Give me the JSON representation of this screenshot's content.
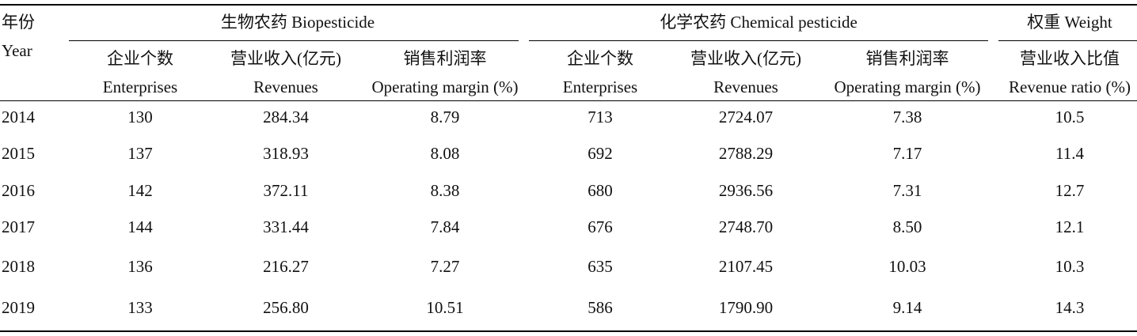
{
  "year_header": {
    "zh": "年份",
    "en": "Year"
  },
  "groups": {
    "bio": "生物农药 Biopesticide",
    "chem": "化学农药 Chemical pesticide",
    "weight": "权重 Weight"
  },
  "subheaders": [
    {
      "zh": "企业个数",
      "en": "Enterprises"
    },
    {
      "zh": "营业收入(亿元)",
      "en": "Revenues"
    },
    {
      "zh": "销售利润率",
      "en": "Operating margin (%)"
    },
    {
      "zh": "企业个数",
      "en": "Enterprises"
    },
    {
      "zh": "营业收入(亿元)",
      "en": "Revenues"
    },
    {
      "zh": "销售利润率",
      "en": "Operating margin (%)"
    },
    {
      "zh": "营业收入比值",
      "en": "Revenue ratio (%)"
    }
  ],
  "rows": [
    {
      "year": "2014",
      "cells": [
        "130",
        "284.34",
        "8.79",
        "713",
        "2724.07",
        "7.38",
        "10.5"
      ]
    },
    {
      "year": "2015",
      "cells": [
        "137",
        "318.93",
        "8.08",
        "692",
        "2788.29",
        "7.17",
        "11.4"
      ]
    },
    {
      "year": "2016",
      "cells": [
        "142",
        "372.11",
        "8.38",
        "680",
        "2936.56",
        "7.31",
        "12.7"
      ]
    },
    {
      "year": "2017",
      "cells": [
        "144",
        "331.44",
        "7.84",
        "676",
        "2748.70",
        "8.50",
        "12.1"
      ]
    },
    {
      "year": "2018",
      "cells": [
        "136",
        "216.27",
        "7.27",
        "635",
        "2107.45",
        "10.03",
        "10.3"
      ]
    },
    {
      "year": "2019",
      "cells": [
        "133",
        "256.80",
        "10.51",
        "586",
        "1790.90",
        "9.14",
        "14.3"
      ]
    }
  ]
}
